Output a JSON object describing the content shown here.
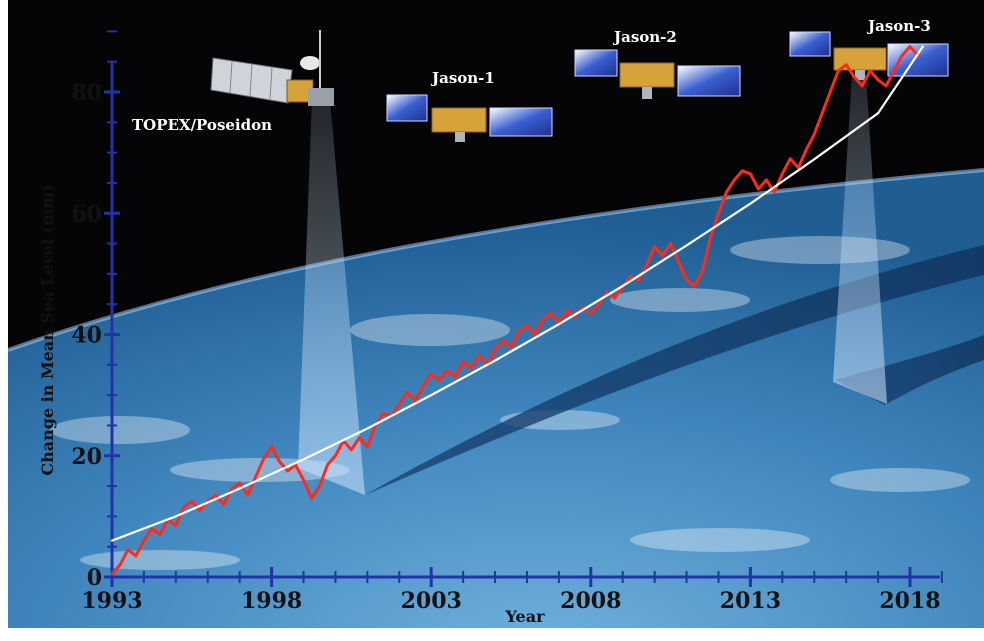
{
  "chart_data": {
    "type": "line",
    "title": "",
    "xlabel": "Year",
    "ylabel": "Change in Mean Sea Level (mm)",
    "xlim": [
      1993,
      2019
    ],
    "ylim": [
      0,
      90
    ],
    "x_ticks": [
      1993,
      1998,
      2003,
      2008,
      2013,
      2018
    ],
    "y_ticks": [
      0,
      20,
      40,
      60,
      80
    ],
    "grid": false,
    "legend": "none",
    "colors": {
      "observed": "#ff2a1a",
      "trend": "#ffffff",
      "axis": "#2233aa",
      "space": "#050507",
      "ocean": "#3d87c0",
      "panel": "#d8dde3",
      "beam": "#9cc4e4"
    },
    "series": [
      {
        "x": [
          1993.0,
          1993.25,
          1993.5,
          1993.75,
          1994.0,
          1994.25,
          1994.5,
          1994.75,
          1995.0,
          1995.25,
          1995.5,
          1995.75,
          1996.0,
          1996.25,
          1996.5,
          1996.75,
          1997.0,
          1997.25,
          1997.5,
          1997.75,
          1998.0,
          1998.25,
          1998.5,
          1998.75,
          1999.0,
          1999.25,
          1999.5,
          1999.75,
          2000.0,
          2000.25,
          2000.5,
          2000.75,
          2001.0,
          2001.25,
          2001.5,
          2001.75,
          2002.0,
          2002.25,
          2002.5,
          2002.75,
          2003.0,
          2003.25,
          2003.5,
          2003.75,
          2004.0,
          2004.25,
          2004.5,
          2004.75,
          2005.0,
          2005.25,
          2005.5,
          2005.75,
          2006.0,
          2006.25,
          2006.5,
          2006.75,
          2007.0,
          2007.25,
          2007.5,
          2007.75,
          2008.0,
          2008.25,
          2008.5,
          2008.75,
          2009.0,
          2009.25,
          2009.5,
          2009.75,
          2010.0,
          2010.25,
          2010.5,
          2010.75,
          2011.0,
          2011.25,
          2011.5,
          2011.75,
          2012.0,
          2012.25,
          2012.5,
          2012.75,
          2013.0,
          2013.25,
          2013.5,
          2013.75,
          2014.0,
          2014.25,
          2014.5,
          2014.75,
          2015.0,
          2015.25,
          2015.5,
          2015.75,
          2016.0,
          2016.25,
          2016.5,
          2016.75,
          2017.0,
          2017.25,
          2017.5,
          2017.75,
          2018.0,
          2018.25
        ],
        "y": [
          0.5,
          2.0,
          4.5,
          3.5,
          6.0,
          8.0,
          7.0,
          9.5,
          8.5,
          11.5,
          12.5,
          11.0,
          12.5,
          13.5,
          12.0,
          14.5,
          15.5,
          13.5,
          16.5,
          19.5,
          21.5,
          19.0,
          17.5,
          18.5,
          16.0,
          13.0,
          15.0,
          18.5,
          20.0,
          22.5,
          21.0,
          23.0,
          21.5,
          25.0,
          27.0,
          26.5,
          28.5,
          30.5,
          29.0,
          31.5,
          33.5,
          32.5,
          34.0,
          33.0,
          35.5,
          34.5,
          36.5,
          35.0,
          37.5,
          39.0,
          38.0,
          40.5,
          41.5,
          40.0,
          42.5,
          43.5,
          42.0,
          44.0,
          43.0,
          44.5,
          43.5,
          45.0,
          47.0,
          46.0,
          48.0,
          49.5,
          49.0,
          51.5,
          54.5,
          53.0,
          55.0,
          52.0,
          49.0,
          48.0,
          50.5,
          56.0,
          60.0,
          63.5,
          65.5,
          67.0,
          66.5,
          64.0,
          65.5,
          63.5,
          66.5,
          69.0,
          67.5,
          70.5,
          73.0,
          76.5,
          80.0,
          83.5,
          84.5,
          82.5,
          81.0,
          83.5,
          82.0,
          81.0,
          83.5,
          86.0,
          87.5,
          86.0
        ]
      },
      {
        "x": [
          1993.0,
          1995.0,
          1997.0,
          1999.0,
          2001.0,
          2003.0,
          2005.0,
          2007.0,
          2009.0,
          2011.0,
          2013.0,
          2015.0,
          2017.0,
          2018.4
        ],
        "y": [
          6.0,
          10.0,
          14.6,
          19.4,
          24.5,
          30.0,
          35.7,
          41.7,
          48.0,
          54.7,
          61.6,
          68.9,
          76.5,
          87.5
        ]
      }
    ],
    "annotations": {
      "topex": "TOPEX/Poseidon",
      "jason1": "Jason-1",
      "jason2": "Jason-2",
      "jason3": "Jason-3"
    }
  }
}
